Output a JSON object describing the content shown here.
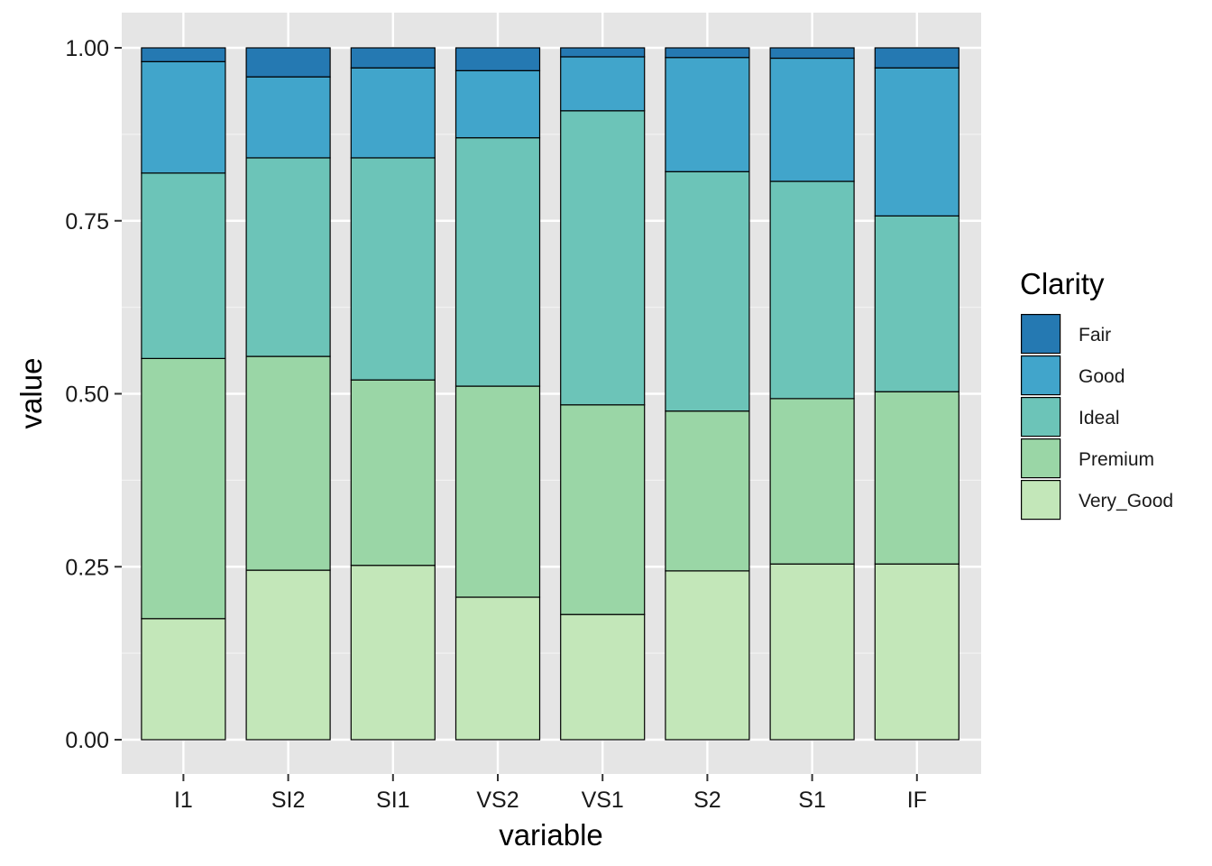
{
  "chart_data": {
    "type": "bar",
    "stacked": true,
    "categories": [
      "I1",
      "SI2",
      "SI1",
      "VS2",
      "VS1",
      "S2",
      "S1",
      "IF"
    ],
    "series": [
      {
        "name": "Very_Good",
        "color": "#c3e7b9",
        "values": [
          0.175,
          0.245,
          0.252,
          0.206,
          0.181,
          0.244,
          0.254,
          0.254
        ]
      },
      {
        "name": "Premium",
        "color": "#9ad6a6",
        "values": [
          0.376,
          0.309,
          0.268,
          0.305,
          0.303,
          0.231,
          0.239,
          0.249
        ]
      },
      {
        "name": "Ideal",
        "color": "#6cc4b8",
        "values": [
          0.268,
          0.287,
          0.321,
          0.359,
          0.425,
          0.346,
          0.314,
          0.254
        ]
      },
      {
        "name": "Good",
        "color": "#41a5cb",
        "values": [
          0.161,
          0.117,
          0.13,
          0.097,
          0.078,
          0.165,
          0.178,
          0.214
        ]
      },
      {
        "name": "Fair",
        "color": "#2579b2",
        "values": [
          0.02,
          0.042,
          0.029,
          0.033,
          0.013,
          0.014,
          0.015,
          0.029
        ]
      }
    ],
    "xlabel": "variable",
    "ylabel": "value",
    "ylim": [
      0,
      1
    ],
    "yticks": [
      "0.00",
      "0.25",
      "0.50",
      "0.75",
      "1.00"
    ],
    "legend": {
      "title": "Clarity",
      "position": "right",
      "entries": [
        "Fair",
        "Good",
        "Ideal",
        "Premium",
        "Very_Good"
      ]
    },
    "grid": true,
    "panel_background": "#e5e5e5"
  }
}
